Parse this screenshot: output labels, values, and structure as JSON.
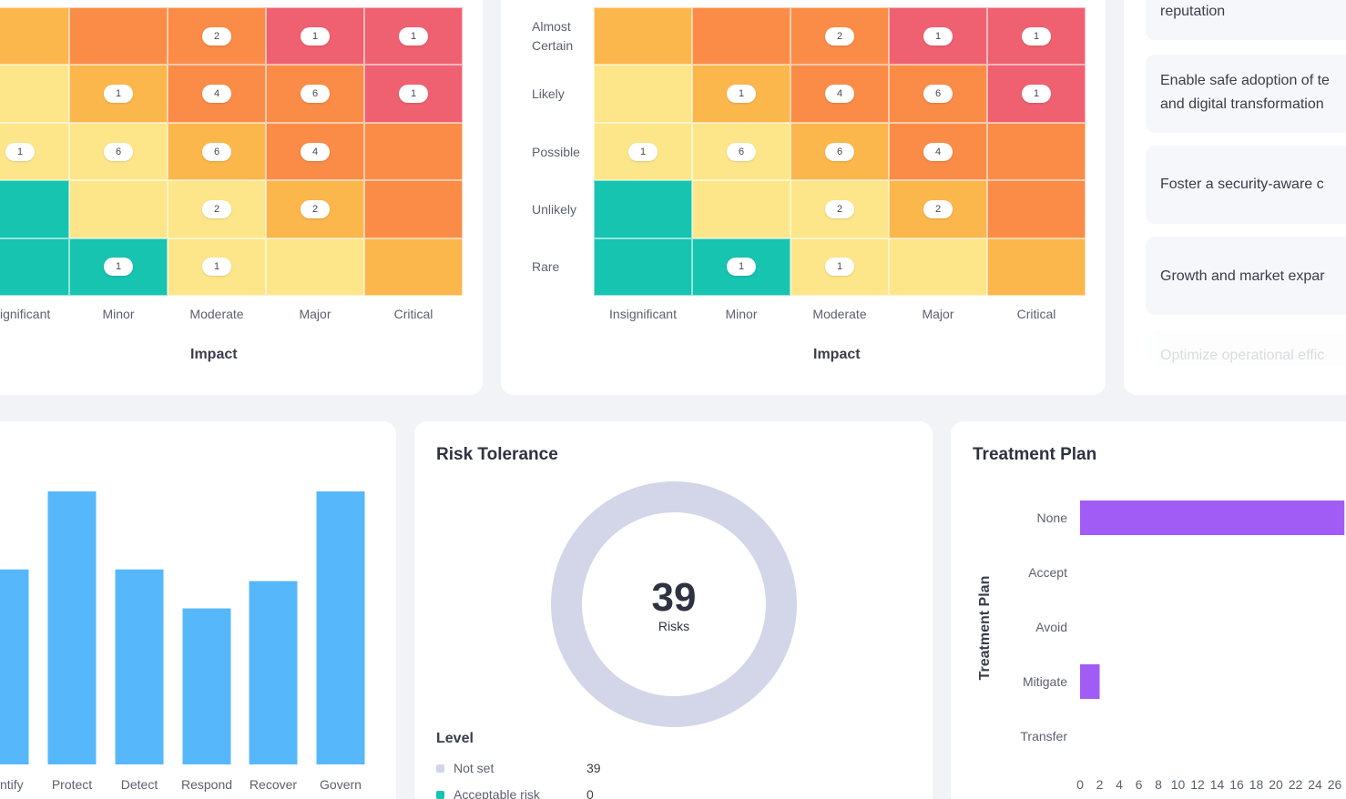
{
  "colors": {
    "green": "#16c4b0",
    "light_yellow": "#fde68a",
    "amber": "#fcb74c",
    "orange": "#fb8c47",
    "red": "#ef6170",
    "bar_blue": "#56b8fb",
    "bar_purple": "#a25cf6",
    "donut_grey": "#d3d6e8"
  },
  "heatmaps": {
    "likelihood_labels": [
      "Almost Certain",
      "Likely",
      "Possible",
      "Unlikely",
      "Rare"
    ],
    "impact_labels": [
      "Insignificant",
      "Minor",
      "Moderate",
      "Major",
      "Critical"
    ],
    "impact_title": "Impact",
    "left_partial_first_label": "ignificant",
    "cell_colors": [
      [
        "amber",
        "orange",
        "orange",
        "red",
        "red"
      ],
      [
        "light_yellow",
        "amber",
        "orange",
        "orange",
        "red"
      ],
      [
        "light_yellow",
        "light_yellow",
        "amber",
        "orange",
        "orange"
      ],
      [
        "green",
        "light_yellow",
        "light_yellow",
        "amber",
        "orange"
      ],
      [
        "green",
        "green",
        "light_yellow",
        "light_yellow",
        "amber"
      ]
    ],
    "counts": [
      [
        null,
        null,
        "2",
        "1",
        "1"
      ],
      [
        null,
        "1",
        "4",
        "6",
        "1"
      ],
      [
        "1",
        "6",
        "6",
        "4",
        null
      ],
      [
        null,
        null,
        "2",
        "2",
        null
      ],
      [
        null,
        "1",
        "1",
        null,
        null
      ]
    ]
  },
  "objectives": {
    "items": [
      "reputation",
      "Enable safe adoption of technology and digital transformation",
      "Foster a security-aware culture",
      "Growth and market expansion",
      "Optimize operational efficiency"
    ],
    "display": [
      "reputation",
      "Enable safe adoption of te",
      "and digital transformation",
      "Foster a security-aware c",
      "Growth and market expar",
      "Optimize operational effic"
    ]
  },
  "functions_chart": {
    "labels": [
      "ntify",
      "Protect",
      "Detect",
      "Respond",
      "Recover",
      "Govern"
    ]
  },
  "risk_tolerance": {
    "title": "Risk Tolerance",
    "total": "39",
    "total_label": "Risks",
    "legend_title": "Level",
    "legend": [
      {
        "label": "Not set",
        "count": "39",
        "color": "#d3d6e8"
      },
      {
        "label": "Acceptable risk",
        "count": "0",
        "color": "#16c4b0"
      }
    ]
  },
  "treatment_plan": {
    "title": "Treatment Plan",
    "yaxis_title": "Treatment Plan",
    "categories": [
      "None",
      "Accept",
      "Avoid",
      "Mitigate",
      "Transfer"
    ],
    "x_ticks": [
      "0",
      "2",
      "4",
      "6",
      "8",
      "10",
      "12",
      "14",
      "16",
      "18",
      "20",
      "22",
      "24",
      "26"
    ]
  },
  "chart_data": [
    {
      "type": "heatmap",
      "xlabel": "Impact",
      "x_categories": [
        "Insignificant",
        "Minor",
        "Moderate",
        "Major",
        "Critical"
      ],
      "y_categories": [
        "Almost Certain",
        "Likely",
        "Possible",
        "Unlikely",
        "Rare"
      ],
      "values": [
        [
          null,
          null,
          2,
          1,
          1
        ],
        [
          null,
          1,
          4,
          6,
          1
        ],
        [
          1,
          6,
          6,
          4,
          null
        ],
        [
          null,
          null,
          2,
          2,
          null
        ],
        [
          null,
          1,
          1,
          null,
          null
        ]
      ]
    },
    {
      "type": "heatmap",
      "xlabel": "Impact",
      "x_categories": [
        "Insignificant",
        "Minor",
        "Moderate",
        "Major",
        "Critical"
      ],
      "y_categories": [
        "Almost Certain",
        "Likely",
        "Possible",
        "Unlikely",
        "Rare"
      ],
      "values": [
        [
          null,
          null,
          2,
          1,
          1
        ],
        [
          null,
          1,
          4,
          6,
          1
        ],
        [
          1,
          6,
          6,
          4,
          null
        ],
        [
          null,
          null,
          2,
          2,
          null
        ],
        [
          null,
          1,
          1,
          null,
          null
        ]
      ]
    },
    {
      "type": "bar",
      "categories": [
        "ntify",
        "Protect",
        "Detect",
        "Respond",
        "Recover",
        "Govern"
      ],
      "values": [
        10,
        14,
        10,
        8,
        9.4,
        14
      ],
      "ylim": [
        0,
        15
      ]
    },
    {
      "type": "pie",
      "title": "Risk Tolerance",
      "categories": [
        "Not set",
        "Acceptable risk"
      ],
      "values": [
        39,
        0
      ]
    },
    {
      "type": "bar",
      "orientation": "horizontal",
      "title": "Treatment Plan",
      "ylabel": "Treatment Plan",
      "categories": [
        "None",
        "Accept",
        "Avoid",
        "Mitigate",
        "Transfer"
      ],
      "values": [
        27,
        0,
        0,
        2,
        0
      ],
      "xlim": [
        0,
        26
      ]
    }
  ]
}
